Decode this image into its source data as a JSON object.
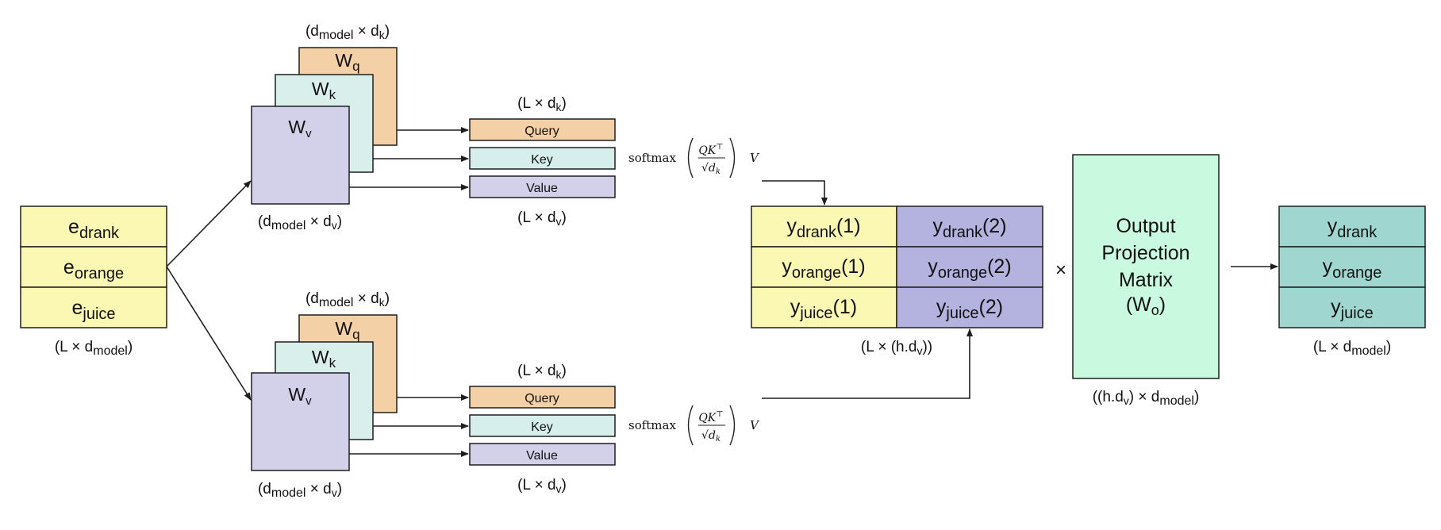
{
  "colors": {
    "embedding": "#fbf8b3",
    "wq": "#f3d0a5",
    "wk": "#d9efec",
    "wv": "#d3d0ea",
    "query": "#f3d0a5",
    "key": "#d6eeec",
    "value": "#d3d0ea",
    "head1": "#fbf8b3",
    "head2": "#b4b2df",
    "projection": "#c9f9df",
    "output": "#9fd7d0",
    "stroke": "#1f1f1f"
  },
  "input": {
    "rows": [
      {
        "base": "e",
        "sub": "drank"
      },
      {
        "base": "e",
        "sub": "orange"
      },
      {
        "base": "e",
        "sub": "juice"
      }
    ],
    "dim": {
      "open": "(L × d",
      "sub": "model",
      "close": ")"
    }
  },
  "heads": [
    {
      "wq_label": {
        "base": "W",
        "sub": "q"
      },
      "wk_label": {
        "base": "W",
        "sub": "k"
      },
      "wv_label": {
        "base": "W",
        "sub": "v"
      },
      "dim_top": {
        "open": "(d",
        "sub": "model",
        "mid": " × d",
        "sub2": "k",
        "close": ")"
      },
      "dim_bottom": {
        "open": "(d",
        "sub": "model",
        "mid": " × d",
        "sub2": "v",
        "close": ")"
      },
      "qkv_dim_top": {
        "open": "(L × d",
        "sub": "k",
        "close": ")"
      },
      "qkv_dim_bottom": {
        "open": "(L × d",
        "sub": "v",
        "close": ")"
      },
      "query_label": "Query",
      "key_label": "Key",
      "value_label": "Value",
      "formula": {
        "prefix": "softmax",
        "num": "QK",
        "sup": "⊤",
        "root": "√",
        "den": "d",
        "den_sub": "k",
        "suffix": "V"
      }
    },
    {
      "wq_label": {
        "base": "W",
        "sub": "q"
      },
      "wk_label": {
        "base": "W",
        "sub": "k"
      },
      "wv_label": {
        "base": "W",
        "sub": "v"
      },
      "dim_top": {
        "open": "(d",
        "sub": "model",
        "mid": " × d",
        "sub2": "k",
        "close": ")"
      },
      "dim_bottom": {
        "open": "(d",
        "sub": "model",
        "mid": " × d",
        "sub2": "v",
        "close": ")"
      },
      "qkv_dim_top": {
        "open": "(L × d",
        "sub": "k",
        "close": ")"
      },
      "qkv_dim_bottom": {
        "open": "(L × d",
        "sub": "v",
        "close": ")"
      },
      "query_label": "Query",
      "key_label": "Key",
      "value_label": "Value",
      "formula": {
        "prefix": "softmax",
        "num": "QK",
        "sup": "⊤",
        "root": "√",
        "den": "d",
        "den_sub": "k",
        "suffix": "V"
      }
    }
  ],
  "concat": {
    "rows": [
      {
        "h1": {
          "base": "y",
          "sub": "drank",
          "tail": "(1)"
        },
        "h2": {
          "base": "y",
          "sub": "drank",
          "tail": "(2)"
        }
      },
      {
        "h1": {
          "base": "y",
          "sub": "orange",
          "tail": "(1)"
        },
        "h2": {
          "base": "y",
          "sub": "orange",
          "tail": "(2)"
        }
      },
      {
        "h1": {
          "base": "y",
          "sub": "juice",
          "tail": "(1)"
        },
        "h2": {
          "base": "y",
          "sub": "juice",
          "tail": "(2)"
        }
      }
    ],
    "dim": {
      "open": "(L × (h.d",
      "sub": "v",
      "close": "))"
    }
  },
  "times_symbol": "×",
  "projection": {
    "lines": [
      "Output",
      "Projection",
      "Matrix"
    ],
    "wo": {
      "open": "(W",
      "sub": "o",
      "close": ")"
    },
    "dim": {
      "open": "((h.d",
      "sub": "v",
      "mid": ") × d",
      "sub2": "model",
      "close": ")"
    }
  },
  "output": {
    "rows": [
      {
        "base": "y",
        "sub": "drank"
      },
      {
        "base": "y",
        "sub": "orange"
      },
      {
        "base": "y",
        "sub": "juice"
      }
    ],
    "dim": {
      "open": "(L × d",
      "sub": "model",
      "close": ")"
    }
  }
}
